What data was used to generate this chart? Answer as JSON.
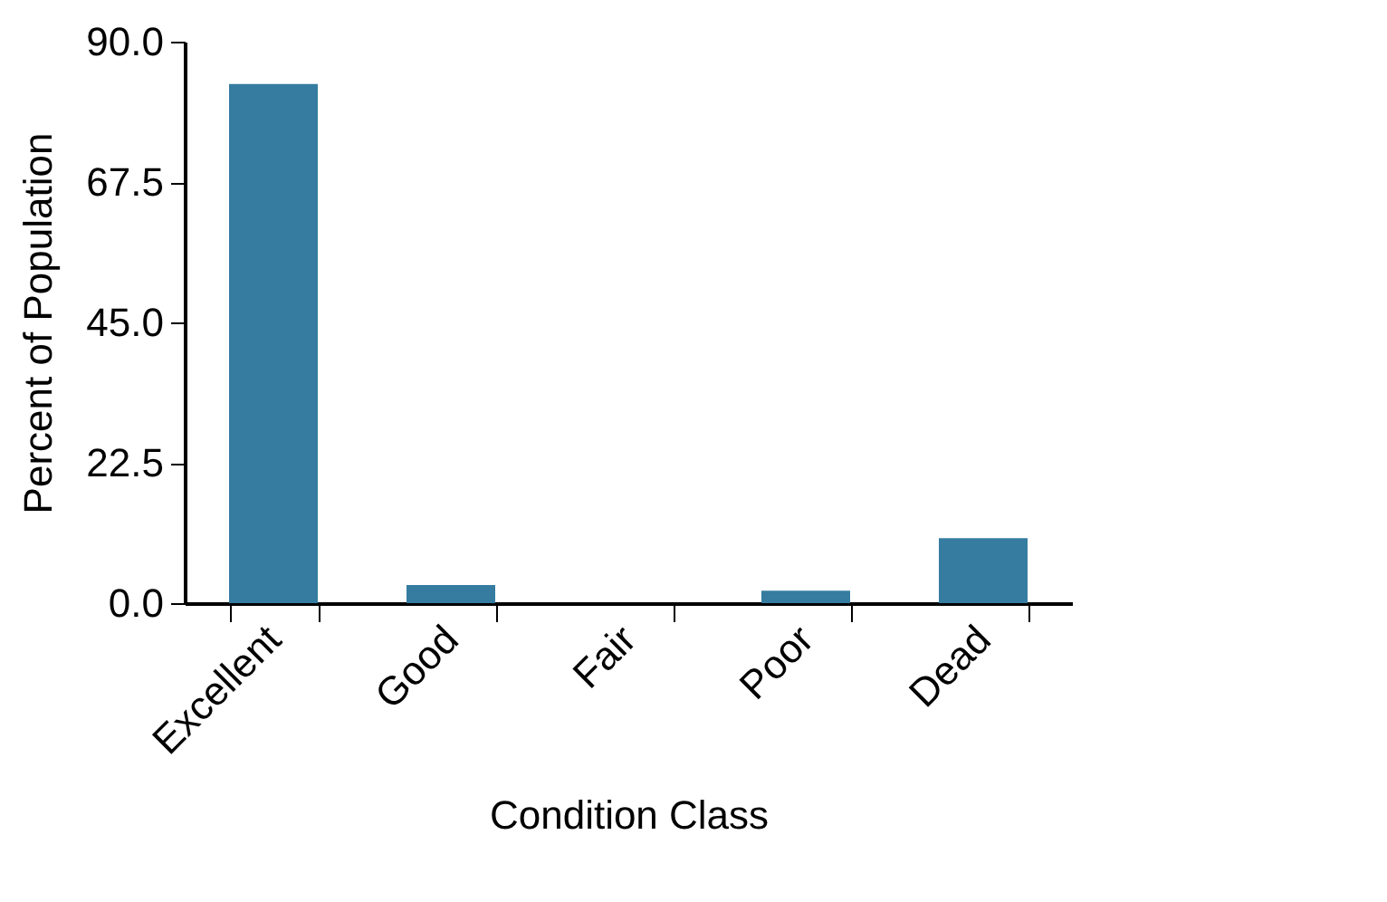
{
  "chart_data": {
    "type": "bar",
    "xlabel": "Condition Class",
    "ylabel": "Percent of Population",
    "categories": [
      "Excellent",
      "Good",
      "Fair",
      "Poor",
      "Dead"
    ],
    "values": [
      83.2,
      2.9,
      0,
      2.0,
      10.4
    ],
    "color": "#357ca0",
    "ylim": [
      0,
      90
    ],
    "yticks": [
      {
        "value": 0,
        "label": "0.0"
      },
      {
        "value": 22.5,
        "label": "22.5"
      },
      {
        "value": 45,
        "label": "45.0"
      },
      {
        "value": 67.5,
        "label": "67.5"
      },
      {
        "value": 90,
        "label": "90.0"
      }
    ],
    "grid": false
  }
}
